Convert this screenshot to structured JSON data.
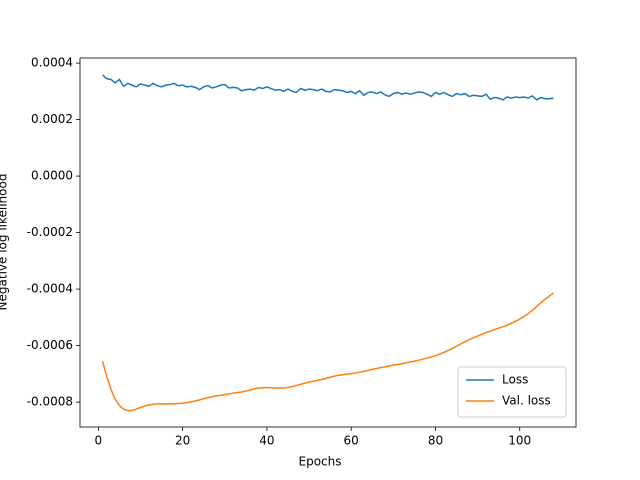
{
  "chart_data": {
    "type": "line",
    "xlabel": "Epochs",
    "ylabel": "Negative log likelihood",
    "x": [
      1,
      2,
      3,
      4,
      5,
      6,
      7,
      8,
      9,
      10,
      11,
      12,
      13,
      14,
      15,
      16,
      17,
      18,
      19,
      20,
      21,
      22,
      23,
      24,
      25,
      26,
      27,
      28,
      29,
      30,
      31,
      32,
      33,
      34,
      35,
      36,
      37,
      38,
      39,
      40,
      41,
      42,
      43,
      44,
      45,
      46,
      47,
      48,
      49,
      50,
      51,
      52,
      53,
      54,
      55,
      56,
      57,
      58,
      59,
      60,
      61,
      62,
      63,
      64,
      65,
      66,
      67,
      68,
      69,
      70,
      71,
      72,
      73,
      74,
      75,
      76,
      77,
      78,
      79,
      80,
      81,
      82,
      83,
      84,
      85,
      86,
      87,
      88,
      89,
      90,
      91,
      92,
      93,
      94,
      95,
      96,
      97,
      98,
      99,
      100,
      101,
      102,
      103,
      104,
      105,
      106,
      107,
      108
    ],
    "series": [
      {
        "name": "Loss",
        "color": "#1f77b4",
        "values": [
          0.000358,
          0.000345,
          0.000342,
          0.00033,
          0.000342,
          0.000318,
          0.000328,
          0.000322,
          0.000316,
          0.000326,
          0.000322,
          0.000318,
          0.000328,
          0.00032,
          0.000316,
          0.000322,
          0.000324,
          0.000328,
          0.00032,
          0.000322,
          0.000316,
          0.000318,
          0.000314,
          0.000306,
          0.000316,
          0.00032,
          0.000312,
          0.000316,
          0.000322,
          0.000324,
          0.000312,
          0.000314,
          0.000312,
          0.000302,
          0.000306,
          0.000308,
          0.000304,
          0.000314,
          0.00031,
          0.000316,
          0.00031,
          0.000304,
          0.000306,
          0.0003,
          0.000308,
          0.0003,
          0.000296,
          0.00031,
          0.000304,
          0.000308,
          0.000306,
          0.000302,
          0.000308,
          0.0003,
          0.000298,
          0.000306,
          0.000304,
          0.000302,
          0.000296,
          0.0003,
          0.000292,
          0.000302,
          0.000286,
          0.000296,
          0.000298,
          0.000292,
          0.000298,
          0.000288,
          0.000282,
          0.000292,
          0.000296,
          0.00029,
          0.000294,
          0.00029,
          0.000294,
          0.000298,
          0.000296,
          0.00029,
          0.000282,
          0.000296,
          0.00029,
          0.000296,
          0.000288,
          0.000282,
          0.000292,
          0.000288,
          0.000292,
          0.000282,
          0.000286,
          0.000284,
          0.000282,
          0.00029,
          0.000272,
          0.000278,
          0.000276,
          0.00027,
          0.00028,
          0.000276,
          0.00028,
          0.000278,
          0.00028,
          0.000276,
          0.000284,
          0.00027,
          0.000278,
          0.000274,
          0.000274,
          0.000276
        ]
      },
      {
        "name": "Val. loss",
        "color": "#ff7f0e",
        "values": [
          -0.000655,
          -0.00071,
          -0.000755,
          -0.00079,
          -0.000812,
          -0.000825,
          -0.00083,
          -0.000829,
          -0.000825,
          -0.000819,
          -0.000814,
          -0.00081,
          -0.000808,
          -0.000806,
          -0.000806,
          -0.000806,
          -0.000806,
          -0.000806,
          -0.000805,
          -0.000804,
          -0.000802,
          -0.000799,
          -0.000796,
          -0.000792,
          -0.000788,
          -0.000784,
          -0.000781,
          -0.000778,
          -0.000776,
          -0.000773,
          -0.000771,
          -0.000768,
          -0.000766,
          -0.000764,
          -0.000761,
          -0.000757,
          -0.000753,
          -0.00075,
          -0.000749,
          -0.000748,
          -0.000749,
          -0.00075,
          -0.00075,
          -0.00075,
          -0.000748,
          -0.000745,
          -0.000741,
          -0.000737,
          -0.000733,
          -0.000729,
          -0.000726,
          -0.000723,
          -0.00072,
          -0.000716,
          -0.000712,
          -0.000708,
          -0.000705,
          -0.000703,
          -0.000701,
          -0.000699,
          -0.000697,
          -0.000694,
          -0.000691,
          -0.000688,
          -0.000684,
          -0.000681,
          -0.000678,
          -0.000675,
          -0.000672,
          -0.000669,
          -0.000667,
          -0.000664,
          -0.000661,
          -0.000658,
          -0.000655,
          -0.000652,
          -0.000648,
          -0.000644,
          -0.00064,
          -0.000636,
          -0.00063,
          -0.000624,
          -0.000617,
          -0.00061,
          -0.000602,
          -0.000594,
          -0.000586,
          -0.000579,
          -0.000572,
          -0.000566,
          -0.00056,
          -0.000554,
          -0.000549,
          -0.000543,
          -0.000538,
          -0.000533,
          -0.000528,
          -0.000521,
          -0.000514,
          -0.000506,
          -0.000497,
          -0.000487,
          -0.000475,
          -0.000462,
          -0.000448,
          -0.000436,
          -0.000425,
          -0.000413
        ]
      }
    ],
    "xlim": [
      -4.35,
      113.35
    ],
    "xticks": [
      0,
      20,
      40,
      60,
      80,
      100
    ],
    "ylim": [
      -0.000888,
      0.000418
    ],
    "yticks": [
      -0.0008,
      -0.0006,
      -0.0004,
      -0.0002,
      {
        "value": 0,
        "label": "0.0000"
      },
      0.0002,
      0.0004
    ],
    "legend": "lower right",
    "grid": false
  }
}
